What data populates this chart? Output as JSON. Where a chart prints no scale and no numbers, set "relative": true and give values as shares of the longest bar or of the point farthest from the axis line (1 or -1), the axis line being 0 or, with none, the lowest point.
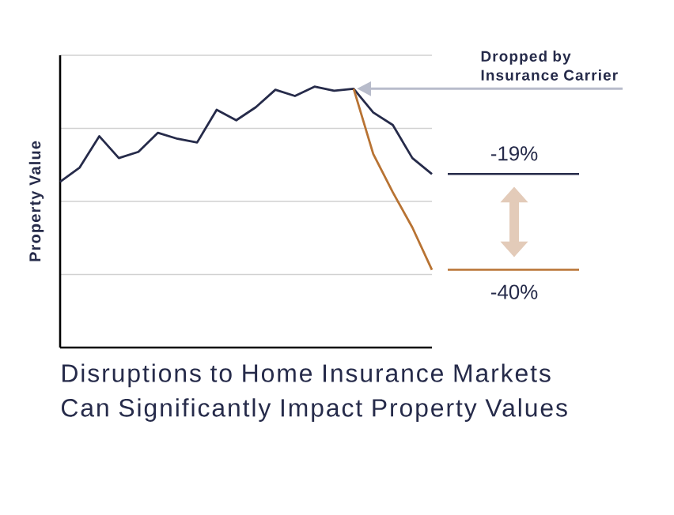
{
  "chart_data": {
    "type": "line",
    "title": "Disruptions to Home Insurance Markets Can Significantly Impact Property Values",
    "ylabel": "Property Value",
    "relative": true,
    "grid": "y",
    "marker": "none",
    "line_style": "solid",
    "categories": [
      null,
      null,
      null,
      null,
      null,
      null,
      null,
      null,
      null,
      null,
      null,
      null,
      null,
      null,
      null,
      null,
      null,
      null,
      null,
      null
    ],
    "series": [
      {
        "color": "#262b4a",
        "values": [
          0.635,
          0.69,
          0.81,
          0.726,
          0.75,
          0.823,
          0.8,
          0.786,
          0.911,
          0.871,
          0.921,
          0.988,
          0.964,
          1.0,
          0.984,
          0.992,
          0.901,
          0.853,
          0.726,
          0.665
        ]
      },
      {
        "color": "#b87333",
        "values": [
          null,
          null,
          null,
          null,
          null,
          null,
          null,
          null,
          null,
          null,
          null,
          null,
          null,
          null,
          null,
          0.992,
          0.742,
          0.595,
          0.46,
          0.298
        ]
      }
    ],
    "annotations": [
      "Dropped by Insurance Carrier",
      "-19%",
      "-40%"
    ]
  }
}
